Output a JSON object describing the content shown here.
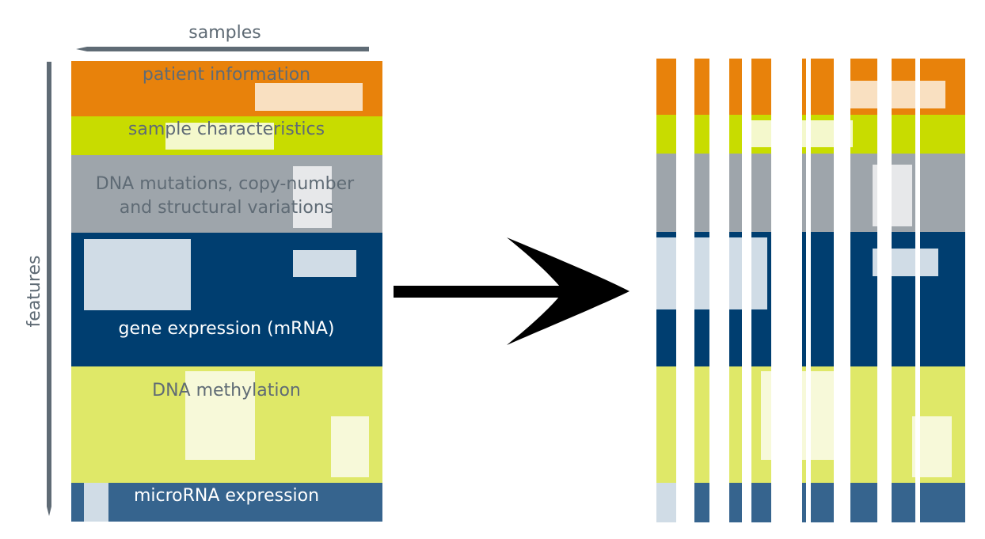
{
  "axes": {
    "samples_label": "samples",
    "features_label": "features"
  },
  "colors": {
    "patient": "#e8820b",
    "sample": "#c8dc00",
    "dna": "#9ea5ab",
    "gene": "#003e70",
    "methylation": "#dfe868",
    "microrna": "#36648e",
    "axis": "#5f6b75",
    "arrow": "#000000"
  },
  "blocks": [
    {
      "id": "patient",
      "lines": [
        "patient  information"
      ],
      "text_color": "#5f6b75"
    },
    {
      "id": "sample",
      "lines": [
        "sample  characteristics"
      ],
      "text_color": "#5f6b75"
    },
    {
      "id": "dna",
      "lines": [
        "DNA mutations, copy-number",
        "and  structural variations"
      ],
      "text_color": "#5f6b75"
    },
    {
      "id": "gene",
      "lines": [
        "gene  expression  (mRNA)"
      ],
      "text_color": "#ffffff"
    },
    {
      "id": "methylation",
      "lines": [
        "DNA  methylation"
      ],
      "text_color": "#5f6b75"
    },
    {
      "id": "microrna",
      "lines": [
        "microRNA  expression"
      ],
      "text_color": "#ffffff"
    }
  ]
}
